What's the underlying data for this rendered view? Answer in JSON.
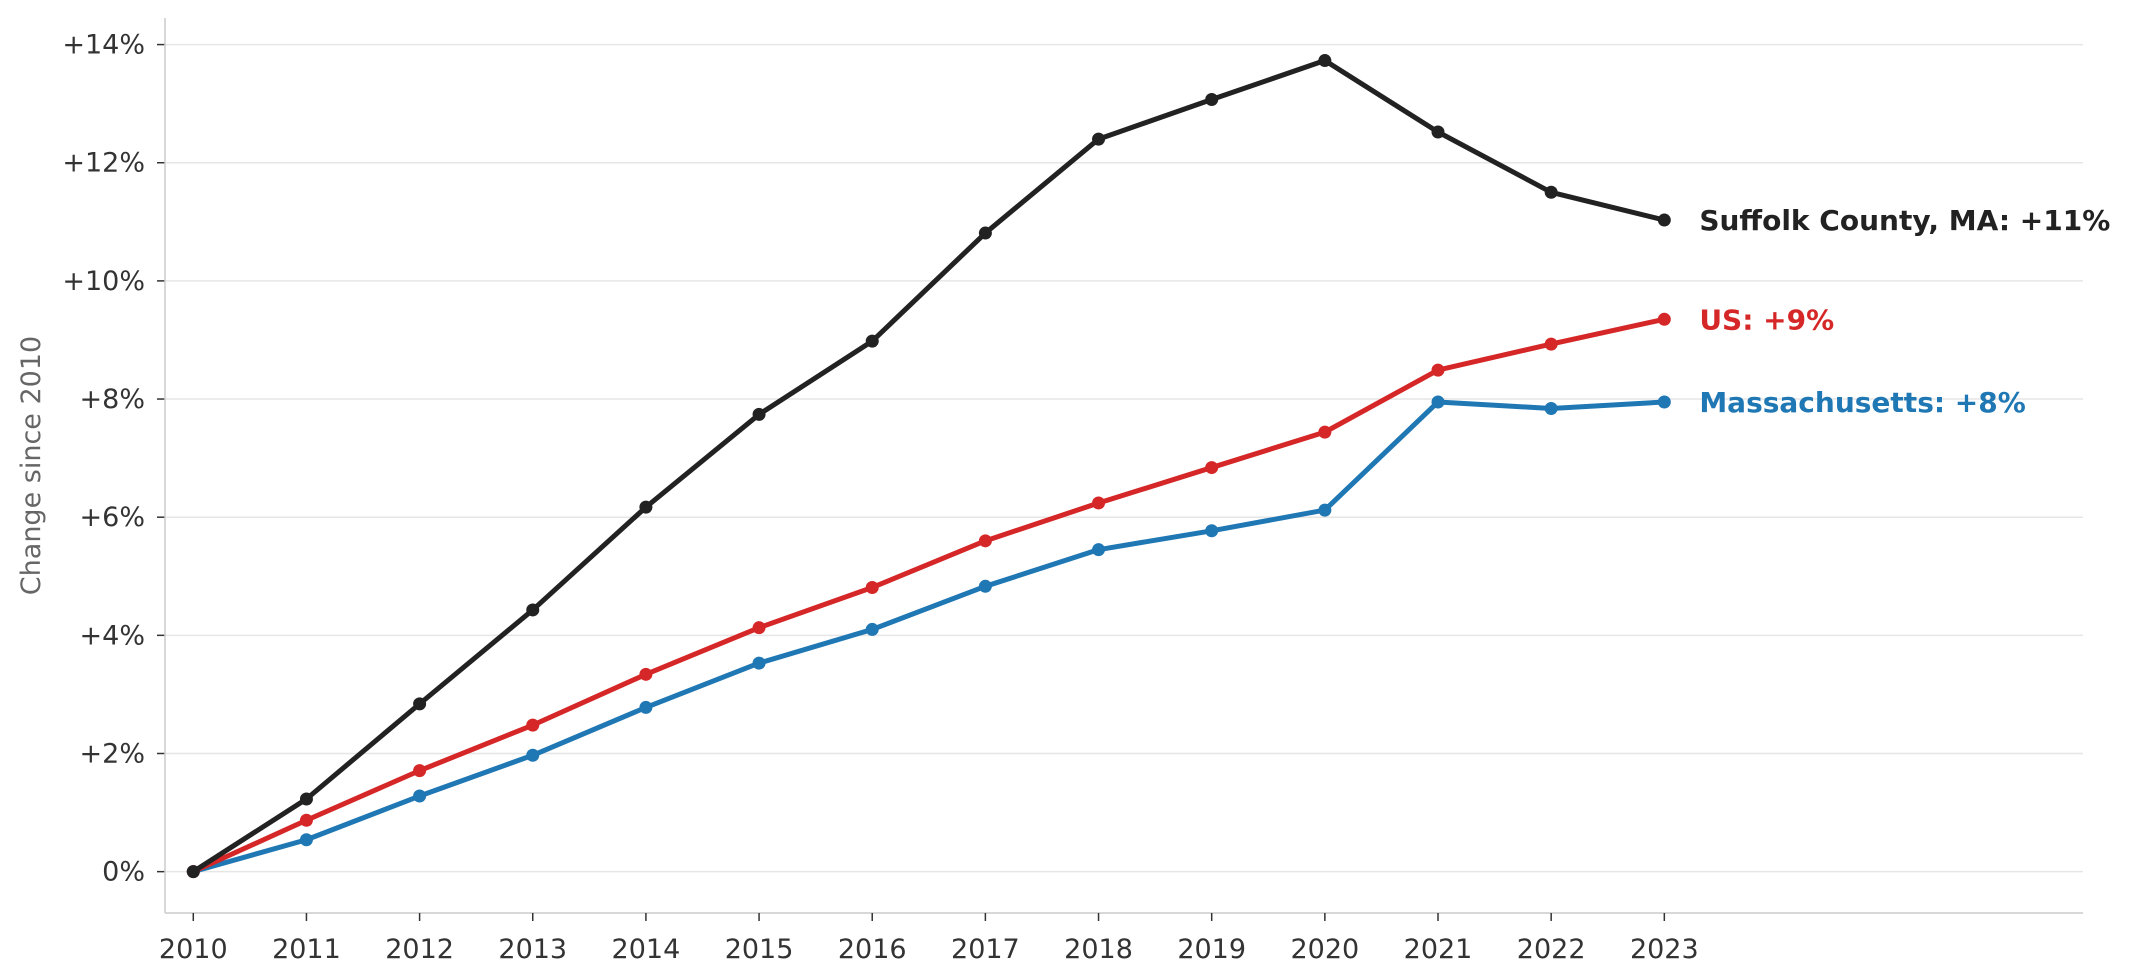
{
  "chart_data": {
    "type": "line",
    "title": "",
    "xlabel": "",
    "ylabel": "Change since 2010",
    "x": [
      2010,
      2011,
      2012,
      2013,
      2014,
      2015,
      2016,
      2017,
      2018,
      2019,
      2020,
      2021,
      2022,
      2023
    ],
    "xlim": [
      2009.75,
      2026.7
    ],
    "ylim": [
      -0.7,
      14.45
    ],
    "yticks": [
      0,
      2,
      4,
      6,
      8,
      10,
      12,
      14
    ],
    "ytick_labels": [
      "0%",
      "+2%",
      "+4%",
      "+6%",
      "+8%",
      "+10%",
      "+12%",
      "+14%"
    ],
    "xtick_labels": [
      "2010",
      "2011",
      "2012",
      "2013",
      "2014",
      "2015",
      "2016",
      "2017",
      "2018",
      "2019",
      "2020",
      "2021",
      "2022",
      "2023"
    ],
    "grid": "horizontal",
    "legend": "none (direct labels at line ends)",
    "series": [
      {
        "name": "Suffolk County, MA",
        "label": "Suffolk County, MA: +11%",
        "color": "#222222",
        "values": [
          0,
          1.23,
          2.84,
          4.43,
          6.17,
          7.74,
          8.98,
          10.81,
          12.4,
          13.07,
          13.73,
          12.52,
          11.5,
          11.03
        ]
      },
      {
        "name": "US",
        "label": "US: +9%",
        "color": "#d62728",
        "values": [
          0,
          0.87,
          1.71,
          2.48,
          3.34,
          4.13,
          4.81,
          5.6,
          6.24,
          6.84,
          7.44,
          8.49,
          8.93,
          9.35
        ]
      },
      {
        "name": "Massachusetts",
        "label": "Massachusetts: +8%",
        "color": "#1f77b4",
        "values": [
          0,
          0.54,
          1.28,
          1.97,
          2.78,
          3.53,
          4.1,
          4.83,
          5.45,
          5.77,
          6.12,
          7.95,
          7.84,
          7.95
        ]
      }
    ]
  }
}
